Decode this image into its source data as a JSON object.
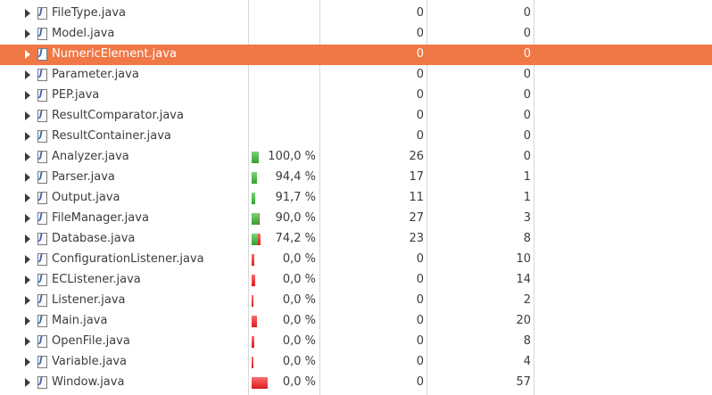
{
  "colors": {
    "selection": "#f07746",
    "bar_covered": "#3cad3c",
    "bar_missed": "#e02828"
  },
  "rows": [
    {
      "name": "FileType.java",
      "coverage": "",
      "covered": "0",
      "missed": "0"
    },
    {
      "name": "Model.java",
      "coverage": "",
      "covered": "0",
      "missed": "0"
    },
    {
      "name": "NumericElement.java",
      "coverage": "",
      "covered": "0",
      "missed": "0",
      "selected": true
    },
    {
      "name": "Parameter.java",
      "coverage": "",
      "covered": "0",
      "missed": "0"
    },
    {
      "name": "PEP.java",
      "coverage": "",
      "covered": "0",
      "missed": "0"
    },
    {
      "name": "ResultComparator.java",
      "coverage": "",
      "covered": "0",
      "missed": "0"
    },
    {
      "name": "ResultContainer.java",
      "coverage": "",
      "covered": "0",
      "missed": "0"
    },
    {
      "name": "Analyzer.java",
      "coverage": "100,0 %",
      "covered": "26",
      "missed": "0",
      "bar_total": 26,
      "bar_fraction": 1.0
    },
    {
      "name": "Parser.java",
      "coverage": "94,4 %",
      "covered": "17",
      "missed": "1",
      "bar_total": 18,
      "bar_fraction": 0.944
    },
    {
      "name": "Output.java",
      "coverage": "91,7 %",
      "covered": "11",
      "missed": "1",
      "bar_total": 12,
      "bar_fraction": 0.917
    },
    {
      "name": "FileManager.java",
      "coverage": "90,0 %",
      "covered": "27",
      "missed": "3",
      "bar_total": 30,
      "bar_fraction": 0.9
    },
    {
      "name": "Database.java",
      "coverage": "74,2 %",
      "covered": "23",
      "missed": "8",
      "bar_total": 31,
      "bar_fraction": 0.742
    },
    {
      "name": "ConfigurationListener.java",
      "coverage": "0,0 %",
      "covered": "0",
      "missed": "10",
      "bar_total": 10,
      "bar_fraction": 0
    },
    {
      "name": "ECListener.java",
      "coverage": "0,0 %",
      "covered": "0",
      "missed": "14",
      "bar_total": 14,
      "bar_fraction": 0
    },
    {
      "name": "Listener.java",
      "coverage": "0,0 %",
      "covered": "0",
      "missed": "2",
      "bar_total": 2,
      "bar_fraction": 0
    },
    {
      "name": "Main.java",
      "coverage": "0,0 %",
      "covered": "0",
      "missed": "20",
      "bar_total": 20,
      "bar_fraction": 0
    },
    {
      "name": "OpenFile.java",
      "coverage": "0,0 %",
      "covered": "0",
      "missed": "8",
      "bar_total": 8,
      "bar_fraction": 0
    },
    {
      "name": "Variable.java",
      "coverage": "0,0 %",
      "covered": "0",
      "missed": "4",
      "bar_total": 4,
      "bar_fraction": 0
    },
    {
      "name": "Window.java",
      "coverage": "0,0 %",
      "covered": "0",
      "missed": "57",
      "bar_total": 57,
      "bar_fraction": 0
    }
  ]
}
